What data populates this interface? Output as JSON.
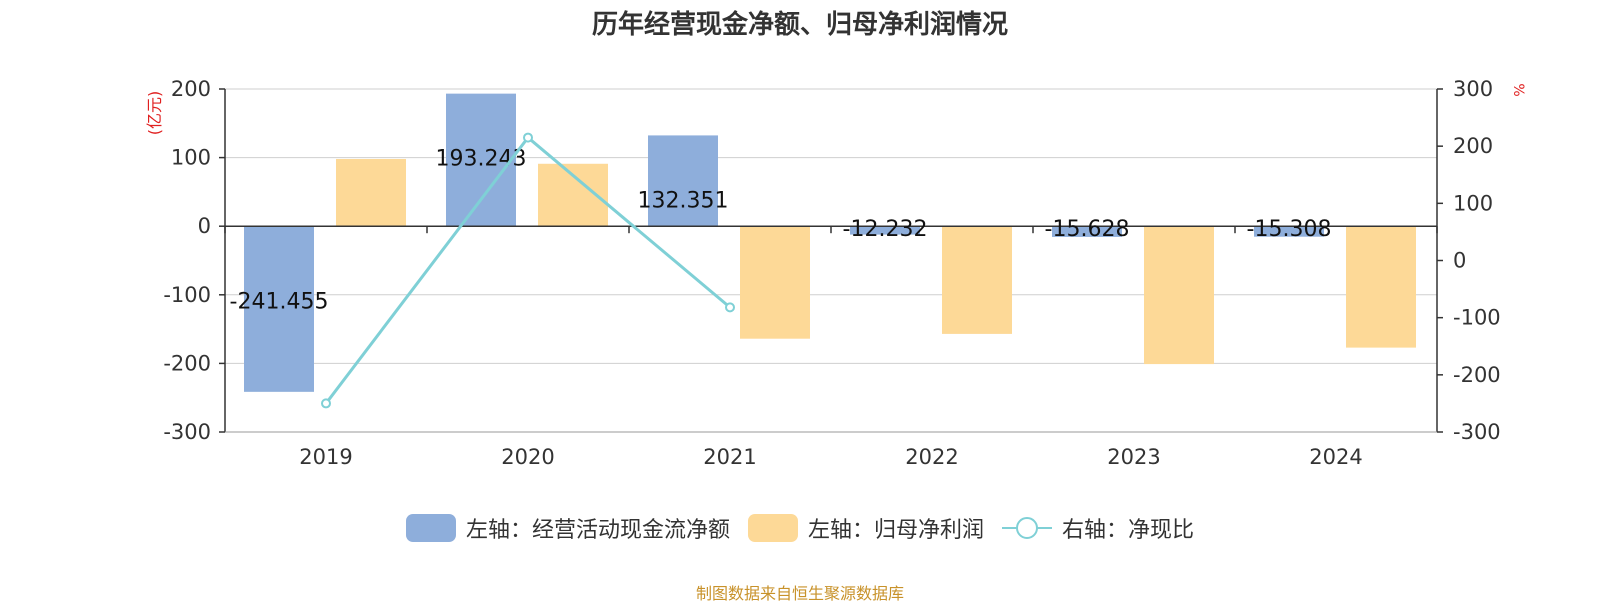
{
  "title": "历年经营现金净额、归母净利润情况",
  "source": "制图数据来自恒生聚源数据库",
  "legend": {
    "item1": "左轴：经营活动现金流净额",
    "item2": "左轴：归母净利润",
    "item3": "右轴：净现比"
  },
  "colors": {
    "cashflow": "#8eaedb",
    "profit": "#fdd997",
    "ratio": "#7fd0d6",
    "unit": "#e02020"
  },
  "chart_data": {
    "type": "bar",
    "categories": [
      "2019",
      "2020",
      "2021",
      "2022",
      "2023",
      "2024"
    ],
    "series": [
      {
        "name": "左轴：经营活动现金流净额",
        "axis": "left",
        "values": [
          -241.455,
          193.243,
          132.351,
          -12.232,
          -15.628,
          -15.308
        ],
        "labels": [
          "-241.455",
          "193.243",
          "132.351",
          "-12.232",
          "-15.628",
          "-15.308"
        ]
      },
      {
        "name": "左轴：归母净利润",
        "axis": "left",
        "values": [
          98,
          91,
          -164,
          -157,
          -201,
          -177
        ]
      },
      {
        "name": "右轴：净现比",
        "axis": "right",
        "type": "line",
        "values": [
          -250,
          215,
          -82,
          null,
          null,
          null
        ]
      }
    ],
    "left_axis": {
      "unit": "(亿元)",
      "ylim": [
        -300,
        200
      ],
      "ticks": [
        "200",
        "100",
        "0",
        "-100",
        "-200",
        "-300"
      ]
    },
    "right_axis": {
      "unit": "%",
      "ylim": [
        -300,
        300
      ],
      "ticks": [
        "300",
        "200",
        "100",
        "0",
        "-100",
        "-200",
        "-300"
      ]
    },
    "grid": true,
    "legend_position": "bottom"
  }
}
